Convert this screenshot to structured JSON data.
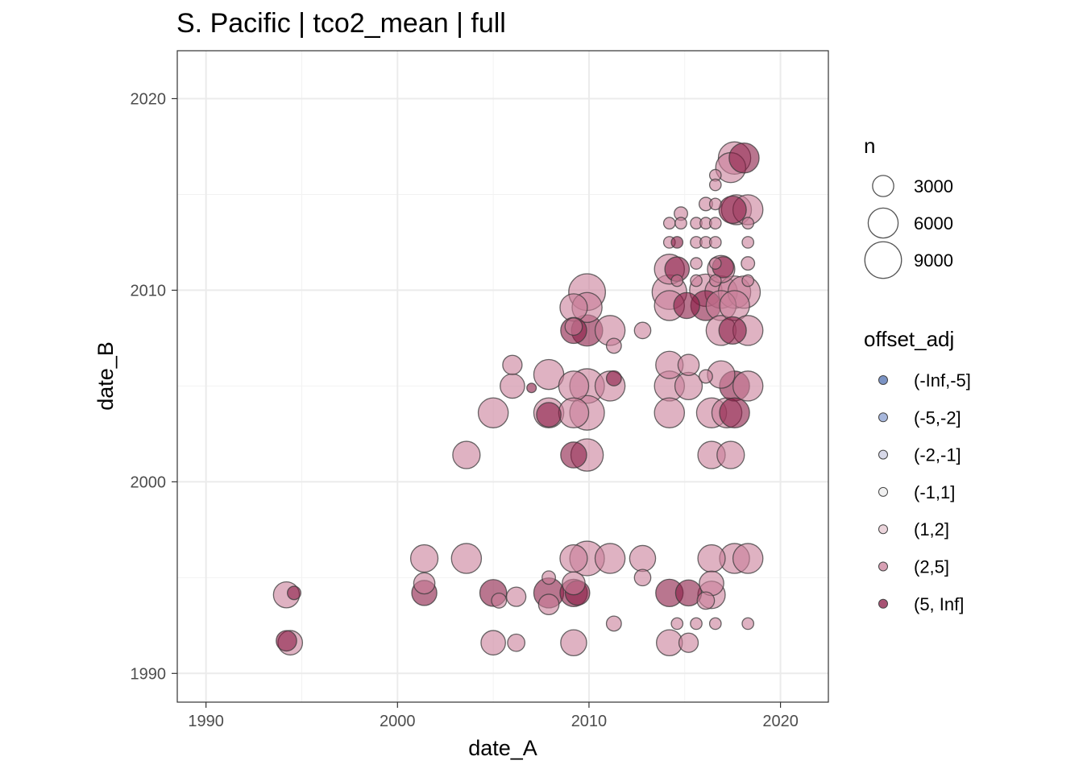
{
  "chart_data": {
    "type": "scatter",
    "title": "S. Pacific | tco2_mean | full",
    "xlabel": "date_A",
    "ylabel": "date_B",
    "xlim": [
      1988.5,
      2022.5
    ],
    "ylim": [
      1988.5,
      2022.5
    ],
    "x_ticks": [
      1990,
      2000,
      2010,
      2020
    ],
    "y_ticks": [
      1990,
      2000,
      2010,
      2020
    ],
    "grid": true,
    "size_legend": {
      "title": "n",
      "entries": [
        3000,
        6000,
        9000
      ]
    },
    "color_legend": {
      "title": "offset_adj",
      "entries": [
        {
          "label": "(-Inf,-5]",
          "color": "#4f6fb0"
        },
        {
          "label": "(-5,-2]",
          "color": "#8a9fd0"
        },
        {
          "label": "(-2,-1]",
          "color": "#c9cbe0"
        },
        {
          "label": "(-1,1]",
          "color": "#ececec"
        },
        {
          "label": "(1,2]",
          "color": "#e4c5cf"
        },
        {
          "label": "(2,5]",
          "color": "#c97f9a"
        },
        {
          "label": "(5, Inf]",
          "color": "#8b1a45"
        }
      ]
    },
    "points": [
      {
        "x": 1994.2,
        "y": 1994.1,
        "n": 4500,
        "cls": "(2,5]"
      },
      {
        "x": 1994.6,
        "y": 1994.2,
        "n": 1200,
        "cls": "(5, Inf]"
      },
      {
        "x": 1994.2,
        "y": 1991.7,
        "n": 2800,
        "cls": "(5, Inf]"
      },
      {
        "x": 1994.4,
        "y": 1991.6,
        "n": 4000,
        "cls": "(2,5]"
      },
      {
        "x": 2001.4,
        "y": 1996.0,
        "n": 5000,
        "cls": "(2,5]"
      },
      {
        "x": 2001.4,
        "y": 1994.7,
        "n": 3000,
        "cls": "(2,5]"
      },
      {
        "x": 2001.4,
        "y": 1994.2,
        "n": 4200,
        "cls": "(5, Inf]"
      },
      {
        "x": 2003.6,
        "y": 1996.0,
        "n": 6000,
        "cls": "(2,5]"
      },
      {
        "x": 2003.6,
        "y": 2001.4,
        "n": 5000,
        "cls": "(2,5]"
      },
      {
        "x": 2005.0,
        "y": 2003.6,
        "n": 6000,
        "cls": "(2,5]"
      },
      {
        "x": 2005.0,
        "y": 1994.2,
        "n": 4800,
        "cls": "(5, Inf]"
      },
      {
        "x": 2005.3,
        "y": 1993.8,
        "n": 1500,
        "cls": "(2,5]"
      },
      {
        "x": 2005.0,
        "y": 1991.6,
        "n": 4000,
        "cls": "(2,5]"
      },
      {
        "x": 2006.0,
        "y": 2006.1,
        "n": 2500,
        "cls": "(2,5]"
      },
      {
        "x": 2006.0,
        "y": 2005.0,
        "n": 4000,
        "cls": "(2,5]"
      },
      {
        "x": 2006.2,
        "y": 1994.0,
        "n": 2500,
        "cls": "(2,5]"
      },
      {
        "x": 2006.2,
        "y": 1991.6,
        "n": 2000,
        "cls": "(2,5]"
      },
      {
        "x": 2007.0,
        "y": 2004.9,
        "n": 600,
        "cls": "(5, Inf]"
      },
      {
        "x": 2007.9,
        "y": 2005.6,
        "n": 6000,
        "cls": "(2,5]"
      },
      {
        "x": 2007.9,
        "y": 2003.6,
        "n": 6000,
        "cls": "(2,5]"
      },
      {
        "x": 2007.9,
        "y": 2003.5,
        "n": 4000,
        "cls": "(5, Inf]"
      },
      {
        "x": 2007.9,
        "y": 1995.0,
        "n": 1200,
        "cls": "(2,5]"
      },
      {
        "x": 2007.9,
        "y": 1994.2,
        "n": 6000,
        "cls": "(5, Inf]"
      },
      {
        "x": 2007.9,
        "y": 1993.6,
        "n": 2800,
        "cls": "(2,5]"
      },
      {
        "x": 2009.2,
        "y": 2009.1,
        "n": 5000,
        "cls": "(2,5]"
      },
      {
        "x": 2009.2,
        "y": 2008.1,
        "n": 2000,
        "cls": "(2,5]"
      },
      {
        "x": 2009.2,
        "y": 2007.9,
        "n": 4500,
        "cls": "(5, Inf]"
      },
      {
        "x": 2009.2,
        "y": 2005.0,
        "n": 6000,
        "cls": "(2,5]"
      },
      {
        "x": 2009.2,
        "y": 2003.6,
        "n": 6000,
        "cls": "(2,5]"
      },
      {
        "x": 2009.2,
        "y": 2001.4,
        "n": 4500,
        "cls": "(5, Inf]"
      },
      {
        "x": 2009.2,
        "y": 1996.0,
        "n": 5000,
        "cls": "(2,5]"
      },
      {
        "x": 2009.2,
        "y": 1994.7,
        "n": 3500,
        "cls": "(2,5]"
      },
      {
        "x": 2009.2,
        "y": 1994.2,
        "n": 5000,
        "cls": "(5, Inf]"
      },
      {
        "x": 2009.2,
        "y": 1991.6,
        "n": 4500,
        "cls": "(2,5]"
      },
      {
        "x": 2009.9,
        "y": 2009.9,
        "n": 9000,
        "cls": "(2,5]"
      },
      {
        "x": 2009.9,
        "y": 2009.1,
        "n": 6000,
        "cls": "(2,5]"
      },
      {
        "x": 2009.9,
        "y": 2007.9,
        "n": 6500,
        "cls": "(5, Inf]"
      },
      {
        "x": 2009.9,
        "y": 2005.0,
        "n": 8000,
        "cls": "(2,5]"
      },
      {
        "x": 2009.9,
        "y": 2003.6,
        "n": 8000,
        "cls": "(2,5]"
      },
      {
        "x": 2009.9,
        "y": 2001.4,
        "n": 7000,
        "cls": "(2,5]"
      },
      {
        "x": 2009.9,
        "y": 1996.0,
        "n": 8000,
        "cls": "(2,5]"
      },
      {
        "x": 2009.4,
        "y": 1994.2,
        "n": 4000,
        "cls": "(5, Inf]"
      },
      {
        "x": 2011.1,
        "y": 2007.9,
        "n": 6000,
        "cls": "(2,5]"
      },
      {
        "x": 2011.3,
        "y": 2007.1,
        "n": 1500,
        "cls": "(2,5]"
      },
      {
        "x": 2011.1,
        "y": 2005.0,
        "n": 6000,
        "cls": "(2,5]"
      },
      {
        "x": 2011.3,
        "y": 2005.4,
        "n": 1500,
        "cls": "(5, Inf]"
      },
      {
        "x": 2011.1,
        "y": 1996.0,
        "n": 6000,
        "cls": "(2,5]"
      },
      {
        "x": 2011.3,
        "y": 1992.6,
        "n": 1500,
        "cls": "(2,5]"
      },
      {
        "x": 2012.8,
        "y": 2007.9,
        "n": 1800,
        "cls": "(2,5]"
      },
      {
        "x": 2012.8,
        "y": 1996.0,
        "n": 4500,
        "cls": "(2,5]"
      },
      {
        "x": 2012.8,
        "y": 1995.0,
        "n": 1800,
        "cls": "(2,5]"
      },
      {
        "x": 2014.2,
        "y": 2013.5,
        "n": 900,
        "cls": "(2,5]"
      },
      {
        "x": 2014.2,
        "y": 2012.5,
        "n": 900,
        "cls": "(2,5]"
      },
      {
        "x": 2014.2,
        "y": 2011.1,
        "n": 6000,
        "cls": "(2,5]"
      },
      {
        "x": 2014.2,
        "y": 2009.9,
        "n": 8000,
        "cls": "(2,5]"
      },
      {
        "x": 2014.2,
        "y": 2009.2,
        "n": 6000,
        "cls": "(2,5]"
      },
      {
        "x": 2014.2,
        "y": 2006.1,
        "n": 5000,
        "cls": "(2,5]"
      },
      {
        "x": 2014.2,
        "y": 2005.0,
        "n": 6000,
        "cls": "(2,5]"
      },
      {
        "x": 2014.2,
        "y": 2003.6,
        "n": 6000,
        "cls": "(2,5]"
      },
      {
        "x": 2014.2,
        "y": 1994.2,
        "n": 5000,
        "cls": "(5, Inf]"
      },
      {
        "x": 2014.2,
        "y": 1991.6,
        "n": 4500,
        "cls": "(2,5]"
      },
      {
        "x": 2014.6,
        "y": 2012.5,
        "n": 900,
        "cls": "(5, Inf]"
      },
      {
        "x": 2014.6,
        "y": 2011.1,
        "n": 4000,
        "cls": "(5, Inf]"
      },
      {
        "x": 2014.8,
        "y": 2014.0,
        "n": 1200,
        "cls": "(2,5]"
      },
      {
        "x": 2014.8,
        "y": 2013.5,
        "n": 900,
        "cls": "(2,5]"
      },
      {
        "x": 2014.6,
        "y": 2010.5,
        "n": 900,
        "cls": "(2,5]"
      },
      {
        "x": 2014.6,
        "y": 1992.6,
        "n": 900,
        "cls": "(2,5]"
      },
      {
        "x": 2015.1,
        "y": 2009.2,
        "n": 4500,
        "cls": "(5, Inf]"
      },
      {
        "x": 2015.2,
        "y": 2006.1,
        "n": 3000,
        "cls": "(2,5]"
      },
      {
        "x": 2015.2,
        "y": 2005.0,
        "n": 5000,
        "cls": "(2,5]"
      },
      {
        "x": 2015.2,
        "y": 1994.2,
        "n": 4500,
        "cls": "(5, Inf]"
      },
      {
        "x": 2015.2,
        "y": 1991.6,
        "n": 2500,
        "cls": "(2,5]"
      },
      {
        "x": 2015.6,
        "y": 2013.5,
        "n": 900,
        "cls": "(2,5]"
      },
      {
        "x": 2015.6,
        "y": 2012.5,
        "n": 900,
        "cls": "(2,5]"
      },
      {
        "x": 2015.6,
        "y": 2011.4,
        "n": 900,
        "cls": "(2,5]"
      },
      {
        "x": 2015.6,
        "y": 2010.5,
        "n": 900,
        "cls": "(2,5]"
      },
      {
        "x": 2015.6,
        "y": 1992.6,
        "n": 900,
        "cls": "(2,5]"
      },
      {
        "x": 2016.1,
        "y": 2014.5,
        "n": 1200,
        "cls": "(2,5]"
      },
      {
        "x": 2016.1,
        "y": 2013.5,
        "n": 900,
        "cls": "(2,5]"
      },
      {
        "x": 2016.1,
        "y": 2012.5,
        "n": 900,
        "cls": "(2,5]"
      },
      {
        "x": 2016.1,
        "y": 2010.0,
        "n": 7000,
        "cls": "(2,5]"
      },
      {
        "x": 2016.1,
        "y": 2009.2,
        "n": 6000,
        "cls": "(5, Inf]"
      },
      {
        "x": 2016.1,
        "y": 2005.5,
        "n": 1200,
        "cls": "(2,5]"
      },
      {
        "x": 2016.4,
        "y": 2003.6,
        "n": 6000,
        "cls": "(2,5]"
      },
      {
        "x": 2016.4,
        "y": 2001.4,
        "n": 5000,
        "cls": "(2,5]"
      },
      {
        "x": 2016.4,
        "y": 1996.0,
        "n": 5000,
        "cls": "(2,5]"
      },
      {
        "x": 2016.4,
        "y": 1994.7,
        "n": 4000,
        "cls": "(2,5]"
      },
      {
        "x": 2016.4,
        "y": 1994.1,
        "n": 5000,
        "cls": "(2,5]"
      },
      {
        "x": 2016.1,
        "y": 1993.8,
        "n": 2000,
        "cls": "(2,5]"
      },
      {
        "x": 2016.6,
        "y": 2016.0,
        "n": 900,
        "cls": "(2,5]"
      },
      {
        "x": 2016.6,
        "y": 2015.5,
        "n": 900,
        "cls": "(2,5]"
      },
      {
        "x": 2016.6,
        "y": 2014.5,
        "n": 900,
        "cls": "(2,5]"
      },
      {
        "x": 2016.6,
        "y": 2013.5,
        "n": 900,
        "cls": "(2,5]"
      },
      {
        "x": 2016.6,
        "y": 2012.5,
        "n": 900,
        "cls": "(2,5]"
      },
      {
        "x": 2016.6,
        "y": 2011.4,
        "n": 900,
        "cls": "(2,5]"
      },
      {
        "x": 2016.6,
        "y": 2010.5,
        "n": 900,
        "cls": "(2,5]"
      },
      {
        "x": 2016.6,
        "y": 1992.6,
        "n": 900,
        "cls": "(2,5]"
      },
      {
        "x": 2016.9,
        "y": 2011.1,
        "n": 5000,
        "cls": "(2,5]"
      },
      {
        "x": 2016.9,
        "y": 2009.9,
        "n": 7000,
        "cls": "(2,5]"
      },
      {
        "x": 2016.9,
        "y": 2009.2,
        "n": 6000,
        "cls": "(2,5]"
      },
      {
        "x": 2016.9,
        "y": 2007.9,
        "n": 6000,
        "cls": "(2,5]"
      },
      {
        "x": 2016.9,
        "y": 2005.6,
        "n": 5000,
        "cls": "(2,5]"
      },
      {
        "x": 2017.0,
        "y": 2011.2,
        "n": 3000,
        "cls": "(5, Inf]"
      },
      {
        "x": 2017.2,
        "y": 2003.6,
        "n": 6000,
        "cls": "(2,5]"
      },
      {
        "x": 2017.4,
        "y": 2016.4,
        "n": 6000,
        "cls": "(2,5]"
      },
      {
        "x": 2017.6,
        "y": 2016.9,
        "n": 7000,
        "cls": "(2,5]"
      },
      {
        "x": 2017.5,
        "y": 2014.2,
        "n": 5000,
        "cls": "(5, Inf]"
      },
      {
        "x": 2017.7,
        "y": 2014.2,
        "n": 6000,
        "cls": "(2,5]"
      },
      {
        "x": 2017.6,
        "y": 2009.9,
        "n": 7000,
        "cls": "(2,5]"
      },
      {
        "x": 2017.6,
        "y": 2009.2,
        "n": 6000,
        "cls": "(2,5]"
      },
      {
        "x": 2017.5,
        "y": 2007.9,
        "n": 5000,
        "cls": "(5, Inf]"
      },
      {
        "x": 2017.6,
        "y": 2005.0,
        "n": 6000,
        "cls": "(5, Inf]"
      },
      {
        "x": 2017.6,
        "y": 2003.6,
        "n": 6000,
        "cls": "(5, Inf]"
      },
      {
        "x": 2017.4,
        "y": 2001.4,
        "n": 5000,
        "cls": "(2,5]"
      },
      {
        "x": 2017.6,
        "y": 1996.0,
        "n": 6000,
        "cls": "(2,5]"
      },
      {
        "x": 2018.1,
        "y": 2016.9,
        "n": 6000,
        "cls": "(5, Inf]"
      },
      {
        "x": 2018.3,
        "y": 2014.2,
        "n": 6000,
        "cls": "(2,5]"
      },
      {
        "x": 2018.3,
        "y": 2013.5,
        "n": 900,
        "cls": "(2,5]"
      },
      {
        "x": 2018.3,
        "y": 2012.5,
        "n": 900,
        "cls": "(2,5]"
      },
      {
        "x": 2018.3,
        "y": 2011.4,
        "n": 1200,
        "cls": "(2,5]"
      },
      {
        "x": 2018.3,
        "y": 2010.5,
        "n": 900,
        "cls": "(2,5]"
      },
      {
        "x": 2018.1,
        "y": 2009.9,
        "n": 7000,
        "cls": "(2,5]"
      },
      {
        "x": 2018.3,
        "y": 2007.9,
        "n": 6000,
        "cls": "(2,5]"
      },
      {
        "x": 2018.3,
        "y": 2005.0,
        "n": 6000,
        "cls": "(2,5]"
      },
      {
        "x": 2018.3,
        "y": 1996.0,
        "n": 6000,
        "cls": "(2,5]"
      },
      {
        "x": 2018.3,
        "y": 1992.6,
        "n": 900,
        "cls": "(2,5]"
      }
    ]
  }
}
